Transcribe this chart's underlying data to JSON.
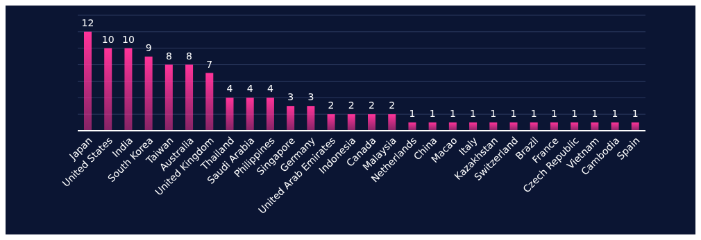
{
  "chart_data": {
    "type": "bar",
    "categories": [
      "Japan",
      "United States",
      "India",
      "South Korea",
      "Taiwan",
      "Australia",
      "United Kingdom",
      "Thailand",
      "Saudi Arabia",
      "Philippines",
      "Singapore",
      "Germany",
      "United Arab Emirates",
      "Indonesia",
      "Canada",
      "Malaysia",
      "Netherlands",
      "China",
      "Macao",
      "Italy",
      "Kazakhstan",
      "Switzerland",
      "Brazil",
      "France",
      "Czech Republic",
      "Vietnam",
      "Cambodia",
      "Spain"
    ],
    "values": [
      12,
      10,
      10,
      9,
      8,
      8,
      7,
      4,
      4,
      4,
      3,
      3,
      2,
      2,
      2,
      2,
      1,
      1,
      1,
      1,
      1,
      1,
      1,
      1,
      1,
      1,
      1,
      1
    ],
    "color": "#ff3399",
    "ylim": [
      0,
      14
    ],
    "yticks": [
      {
        "value": 0,
        "label": null
      },
      {
        "value": 2,
        "label": null
      },
      {
        "value": 4,
        "label": null
      },
      {
        "value": 6,
        "label": null
      },
      {
        "value": 8,
        "label": null
      },
      {
        "value": 10,
        "label": null
      },
      {
        "value": 12,
        "label": null
      },
      {
        "value": 14,
        "label": null
      }
    ],
    "tick_labels": "x",
    "grid": "y",
    "data_labels": true
  }
}
